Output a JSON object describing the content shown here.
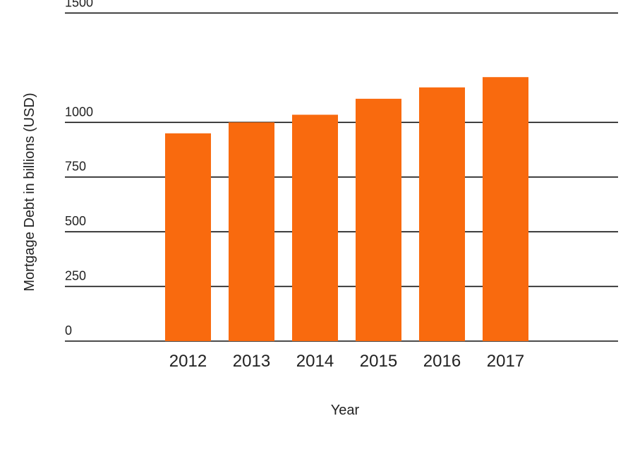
{
  "chart_data": {
    "type": "bar",
    "title": "",
    "xlabel": "Year",
    "ylabel": "Mortgage Debt in billions (USD)",
    "categories": [
      "2012",
      "2013",
      "2014",
      "2015",
      "2016",
      "2017"
    ],
    "values": [
      950,
      1000,
      1035,
      1108,
      1160,
      1207
    ],
    "ylim": [
      0,
      1500
    ],
    "yticks": [
      "0",
      "250",
      "500",
      "750",
      "1000",
      "1500"
    ],
    "grid": true,
    "legend": "none",
    "bar_color": "#f96a0e"
  }
}
